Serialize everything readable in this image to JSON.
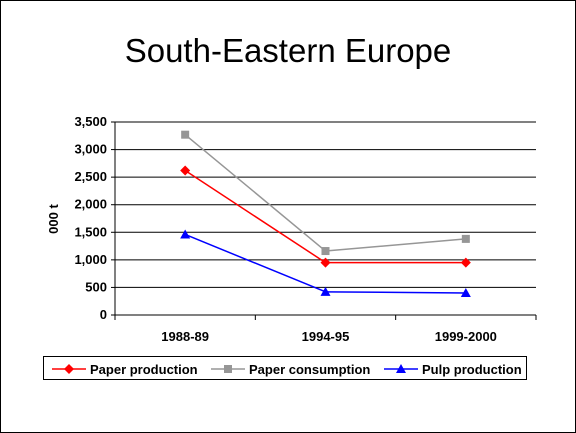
{
  "chart_data": {
    "type": "line",
    "title": "South-Eastern Europe",
    "ylabel": "000 t",
    "xlabel": "",
    "categories": [
      "1988-89",
      "1994-95",
      "1999-2000"
    ],
    "ylim": [
      0,
      3500
    ],
    "yticks": [
      0,
      500,
      1000,
      1500,
      2000,
      2500,
      3000,
      3500
    ],
    "ytick_labels": [
      "0",
      "500",
      "1,000",
      "1,500",
      "2,000",
      "2,500",
      "3,000",
      "3,500"
    ],
    "grid": "horizontal",
    "legend_position": "bottom",
    "series": [
      {
        "name": "Paper production",
        "values": [
          2620,
          950,
          950
        ],
        "color": "#ff0000",
        "marker": "diamond",
        "line": "solid"
      },
      {
        "name": "Paper consumption",
        "values": [
          3270,
          1160,
          1380
        ],
        "color": "#969696",
        "marker": "square",
        "line": "solid"
      },
      {
        "name": "Pulp production",
        "values": [
          1460,
          420,
          400
        ],
        "color": "#0000ff",
        "marker": "triangle",
        "line": "solid"
      }
    ]
  }
}
